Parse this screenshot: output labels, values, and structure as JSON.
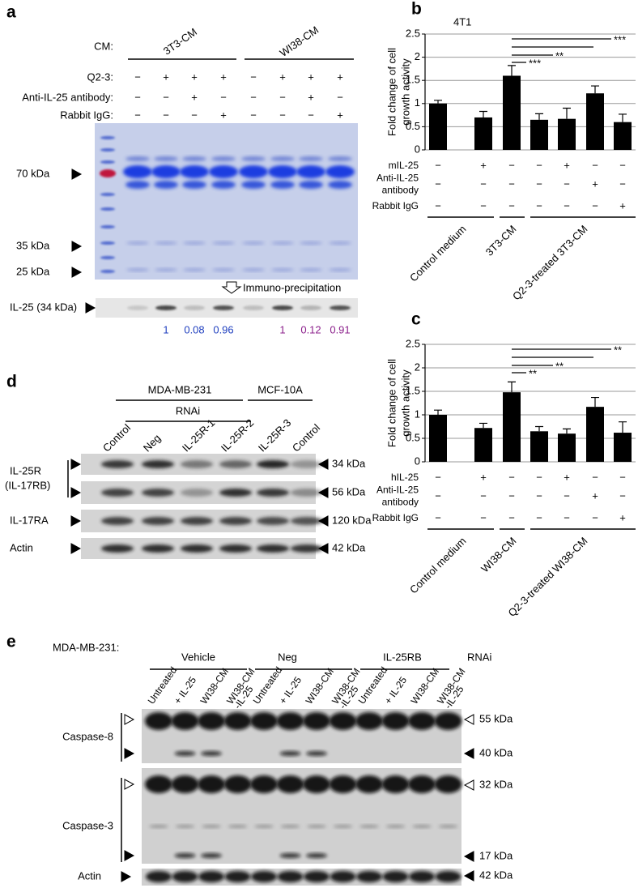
{
  "panel_a": {
    "label": "a",
    "cm_label": "CM:",
    "groups": [
      "3T3-CM",
      "WI38-CM"
    ],
    "rows": [
      {
        "label": "Q2-3:",
        "signs": [
          "−",
          "+",
          "+",
          "+",
          "−",
          "+",
          "+",
          "+"
        ]
      },
      {
        "label": "Anti-IL-25 antibody:",
        "signs": [
          "−",
          "−",
          "+",
          "−",
          "−",
          "−",
          "+",
          "−"
        ]
      },
      {
        "label": "Rabbit IgG:",
        "signs": [
          "−",
          "−",
          "−",
          "+",
          "−",
          "−",
          "−",
          "+"
        ]
      }
    ],
    "markers": [
      "70 kDa",
      "35 kDa",
      "25 kDa"
    ],
    "ip_label": "Immuno-precipitation",
    "ip_band": "IL-25 (34 kDa)",
    "quantities": [
      "1",
      "0.08",
      "0.96",
      "1",
      "0.12",
      "0.91"
    ]
  },
  "chart_data": [
    {
      "type": "bar",
      "panel": "b",
      "title": "4T1",
      "ylabel": [
        "Fold change of cell",
        "growth activity"
      ],
      "ylim": [
        0,
        2.5
      ],
      "yticks": [
        0,
        0.5,
        1,
        1.5,
        2,
        2.5
      ],
      "grid": true,
      "color": "#000000",
      "values": [
        1.0,
        0.7,
        1.6,
        0.65,
        0.67,
        1.22,
        0.6
      ],
      "errors": [
        0.07,
        0.13,
        0.22,
        0.13,
        0.23,
        0.16,
        0.17
      ],
      "significance": [
        "***",
        "**",
        "***"
      ],
      "rows": [
        {
          "label": [
            "mIL-25"
          ],
          "signs": [
            "−",
            "+",
            "−",
            "−",
            "+",
            "−",
            "−"
          ]
        },
        {
          "label": [
            "Anti-IL-25",
            "antibody"
          ],
          "signs": [
            "−",
            "−",
            "−",
            "−",
            "−",
            "+",
            "−"
          ]
        },
        {
          "label": [
            "Rabbit IgG"
          ],
          "signs": [
            "−",
            "−",
            "−",
            "−",
            "−",
            "−",
            "+"
          ]
        }
      ],
      "groups": [
        "Control medium",
        "3T3-CM",
        "Q2-3-treated 3T3-CM"
      ]
    },
    {
      "type": "bar",
      "panel": "c",
      "ylabel": [
        "Fold change of cell",
        "growth activity"
      ],
      "ylim": [
        0,
        2.5
      ],
      "yticks": [
        0,
        0.5,
        1,
        1.5,
        2,
        2.5
      ],
      "grid": true,
      "color": "#000000",
      "values": [
        1.0,
        0.72,
        1.48,
        0.65,
        0.6,
        1.17,
        0.62
      ],
      "errors": [
        0.1,
        0.1,
        0.22,
        0.1,
        0.1,
        0.2,
        0.23
      ],
      "significance": [
        "**",
        "**",
        "**"
      ],
      "rows": [
        {
          "label": [
            "hIL-25"
          ],
          "signs": [
            "−",
            "+",
            "−",
            "−",
            "+",
            "−",
            "−"
          ]
        },
        {
          "label": [
            "Anti-IL-25",
            "antibody"
          ],
          "signs": [
            "−",
            "−",
            "−",
            "−",
            "−",
            "+",
            "−"
          ]
        },
        {
          "label": [
            "Rabbit IgG"
          ],
          "signs": [
            "−",
            "−",
            "−",
            "−",
            "−",
            "−",
            "+"
          ]
        }
      ],
      "groups": [
        "Control medium",
        "WI38-CM",
        "Q2-3-treated WI38-CM"
      ]
    }
  ],
  "panel_d": {
    "label": "d",
    "groups": [
      "MDA-MB-231",
      "MCF-10A"
    ],
    "rnai": "RNAi",
    "lanes": [
      "Control",
      "Neg",
      "IL-25R-1",
      "IL-25R-2",
      "IL-25R-3",
      "Control"
    ],
    "left_labels": [
      "IL-25R",
      "(IL-17RB)",
      "IL-17RA",
      "Actin"
    ],
    "sizes": [
      "34 kDa",
      "56 kDa",
      "120 kDa",
      "42 kDa"
    ]
  },
  "panel_e": {
    "label": "e",
    "cell_line": "MDA-MB-231:",
    "groups": [
      "Vehicle",
      "Neg",
      "IL-25RB"
    ],
    "rnai": "RNAi",
    "lanes": [
      [
        "Untreated"
      ],
      [
        "+ IL-25"
      ],
      [
        "WI38-CM"
      ],
      [
        "WI38-CM",
        "-IL-25"
      ],
      [
        "Untreated"
      ],
      [
        "+ IL-25"
      ],
      [
        "WI38-CM"
      ],
      [
        "WI38-CM",
        "-IL-25"
      ],
      [
        "Untreated"
      ],
      [
        "+ IL-25"
      ],
      [
        "WI38-CM"
      ],
      [
        "WI38-CM",
        "-IL-25"
      ]
    ],
    "left_labels": [
      "Caspase-8",
      "Caspase-3",
      "Actin"
    ],
    "sizes": [
      "55 kDa",
      "40 kDa",
      "32 kDa",
      "17 kDa",
      "42 kDa"
    ]
  }
}
